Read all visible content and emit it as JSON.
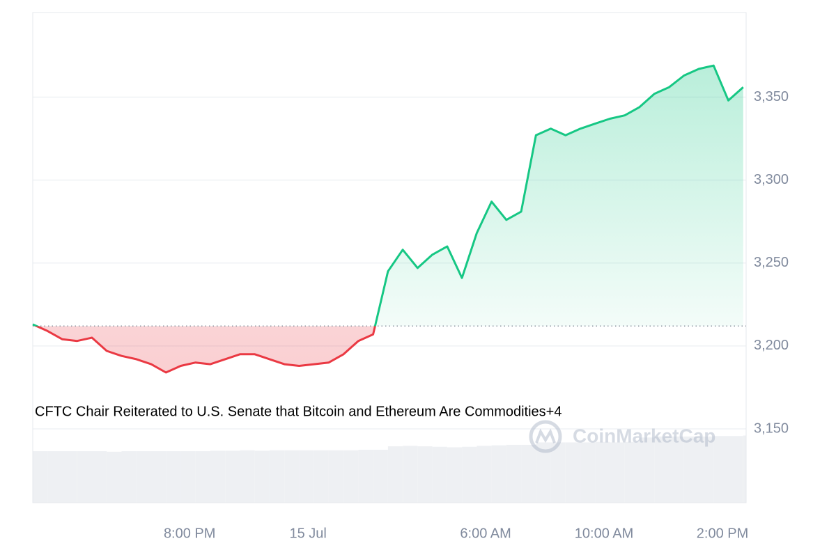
{
  "chart_data": {
    "type": "line",
    "annotation": "CFTC Chair Reiterated to U.S. Senate that Bitcoin and Ethereum Are Commodities+4",
    "watermark": "CoinMarketCap",
    "x": [
      -9.3,
      -8.8,
      -8.3,
      -7.8,
      -7.3,
      -6.8,
      -6.3,
      -5.8,
      -5.3,
      -4.8,
      -4.3,
      -3.8,
      -3.3,
      -2.8,
      -2.3,
      -1.8,
      -1.3,
      -0.8,
      -0.3,
      0.2,
      0.7,
      1.2,
      1.7,
      2.2,
      2.7,
      3.2,
      3.7,
      4.2,
      4.7,
      5.2,
      5.7,
      6.2,
      6.7,
      7.2,
      7.7,
      8.2,
      8.7,
      9.2,
      9.7,
      10.2,
      10.7,
      11.2,
      11.7,
      12.2,
      12.7,
      13.2,
      13.7,
      14.2,
      14.7
    ],
    "values": [
      3213,
      3209,
      3204,
      3203,
      3205,
      3197,
      3194,
      3192,
      3189,
      3184,
      3188,
      3190,
      3189,
      3192,
      3195,
      3195,
      3192,
      3189,
      3188,
      3189,
      3190,
      3195,
      3203,
      3207,
      3245,
      3258,
      3247,
      3255,
      3260,
      3241,
      3268,
      3287,
      3276,
      3281,
      3327,
      3331,
      3327,
      3331,
      3334,
      3337,
      3339,
      3344,
      3352,
      3356,
      3363,
      3367,
      3369,
      3348,
      3356
    ],
    "baseline": 3212,
    "up_color": "#16c784",
    "down_color": "#ea3943",
    "volume": {
      "color": "#eef0f3",
      "ylim": [
        0,
        100
      ],
      "values": [
        10.5,
        10.5,
        10.5,
        10.5,
        10.5,
        10.4,
        10.5,
        10.5,
        10.5,
        10.5,
        10.5,
        10.5,
        10.6,
        10.6,
        10.7,
        10.6,
        10.7,
        10.7,
        10.7,
        10.7,
        10.7,
        10.7,
        10.8,
        10.8,
        11.5,
        11.6,
        11.5,
        11.4,
        11.3,
        11.4,
        11.6,
        11.7,
        11.8,
        11.8,
        12.3,
        12.3,
        12.3,
        12.3,
        12.4,
        12.3,
        12.4,
        13.3,
        13.5,
        13.5,
        13.5,
        13.5,
        13.6,
        13.6,
        13.7
      ]
    },
    "xlim": [
      -9.3,
      14.8
    ],
    "xticks": [
      {
        "value": -4,
        "label": "8:00 PM"
      },
      {
        "value": 0,
        "label": "15 Jul"
      },
      {
        "value": 6,
        "label": "6:00 AM"
      },
      {
        "value": 10,
        "label": "10:00 AM"
      },
      {
        "value": 14,
        "label": "2:00 PM"
      }
    ],
    "ylim": [
      3105.5,
      3401
    ],
    "yticks": [
      {
        "value": 3150,
        "label": "3,150"
      },
      {
        "value": 3200,
        "label": "3,200"
      },
      {
        "value": 3250,
        "label": "3,250"
      },
      {
        "value": 3300,
        "label": "3,300"
      },
      {
        "value": 3350,
        "label": "3,350"
      }
    ],
    "grid": true
  }
}
